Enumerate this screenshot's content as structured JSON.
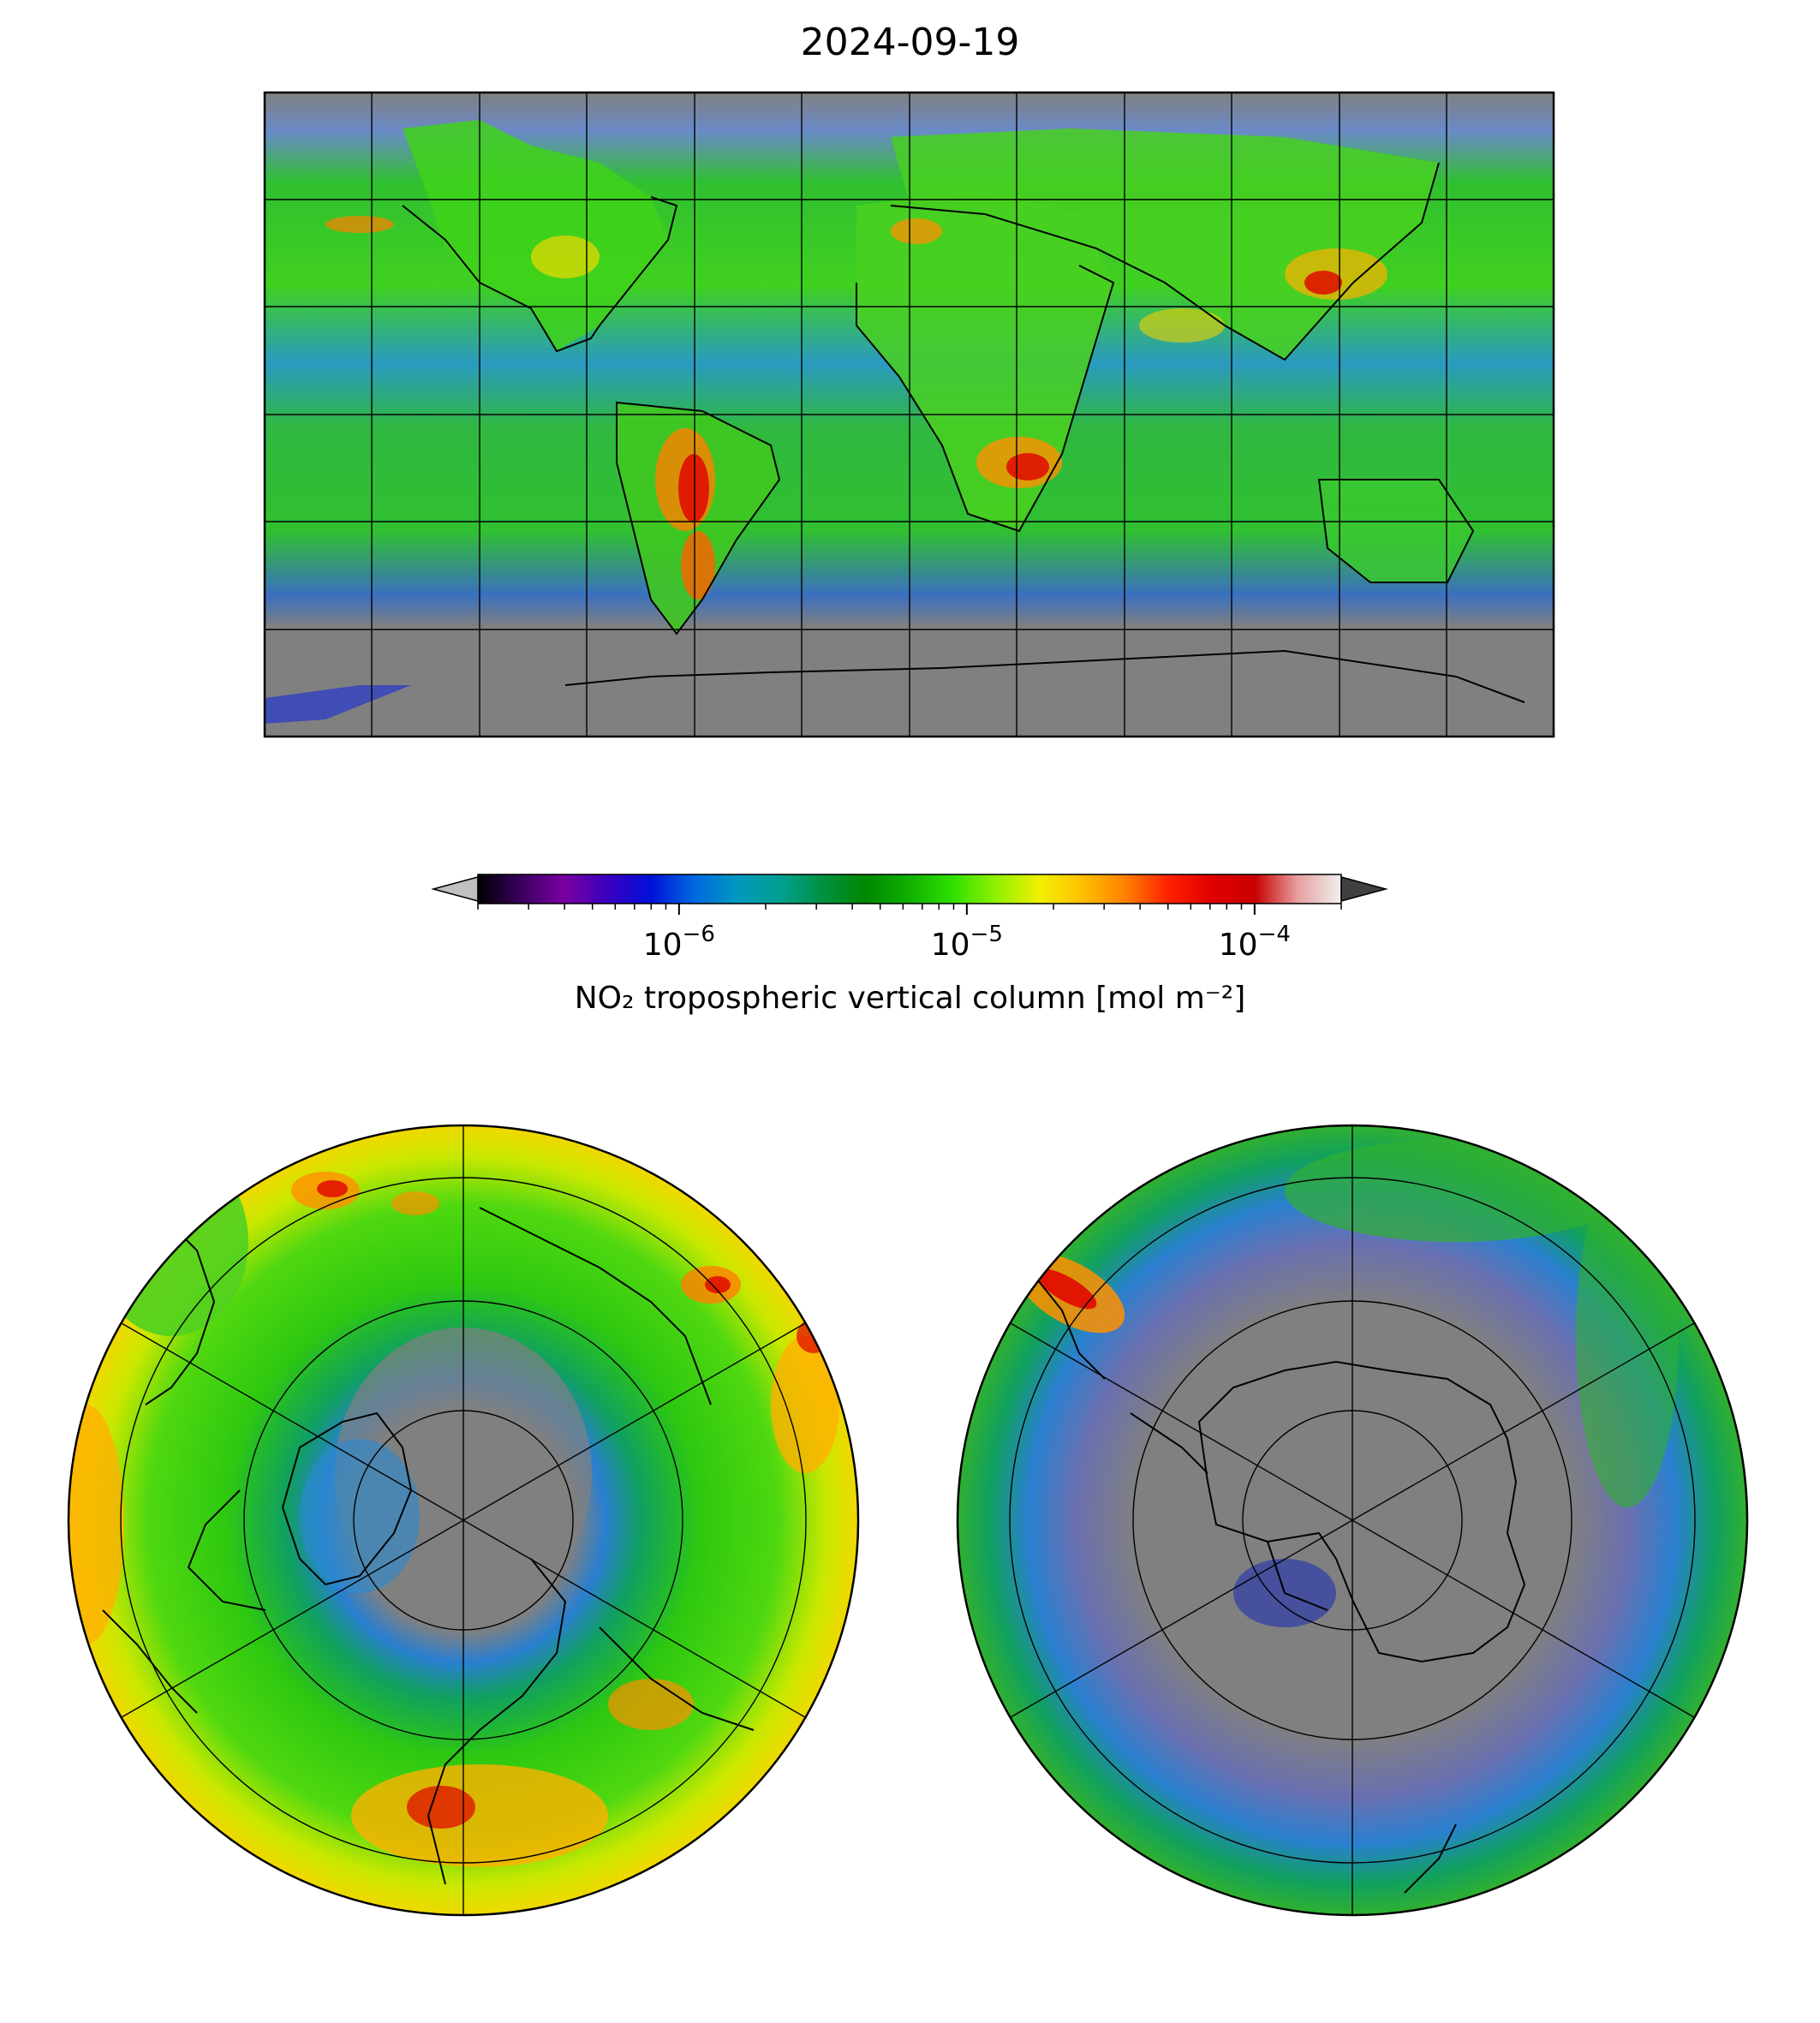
{
  "title": "2024-09-19",
  "colorbar": {
    "label": "NO₂ tropospheric vertical column [mol m⁻²]",
    "scale": "log",
    "range": [
      2e-07,
      0.0002
    ],
    "ticks": [
      {
        "value": 1e-06,
        "base": "10",
        "exp": "−6"
      },
      {
        "value": 1e-05,
        "base": "10",
        "exp": "−5"
      },
      {
        "value": 0.0001,
        "base": "10",
        "exp": "−4"
      }
    ],
    "colormap": [
      "#000000",
      "#3a0060",
      "#7a00a0",
      "#3a00c0",
      "#0010d8",
      "#0068e0",
      "#0098c0",
      "#00a090",
      "#009040",
      "#008800",
      "#10b000",
      "#30e000",
      "#90f000",
      "#f0f000",
      "#ffc000",
      "#ff8000",
      "#ff2000",
      "#e00000",
      "#c80000",
      "#e8a0a0",
      "#f0f0f0"
    ],
    "under_color": "#c0c0c0",
    "over_color": "#404040"
  },
  "panels": {
    "global": {
      "projection": "plate-carree",
      "gridlines": "30°"
    },
    "north": {
      "projection": "north-polar-stereographic"
    },
    "south": {
      "projection": "south-polar-stereographic"
    }
  },
  "map_colors": {
    "no_data": "#808080",
    "coastline": "#000000"
  }
}
